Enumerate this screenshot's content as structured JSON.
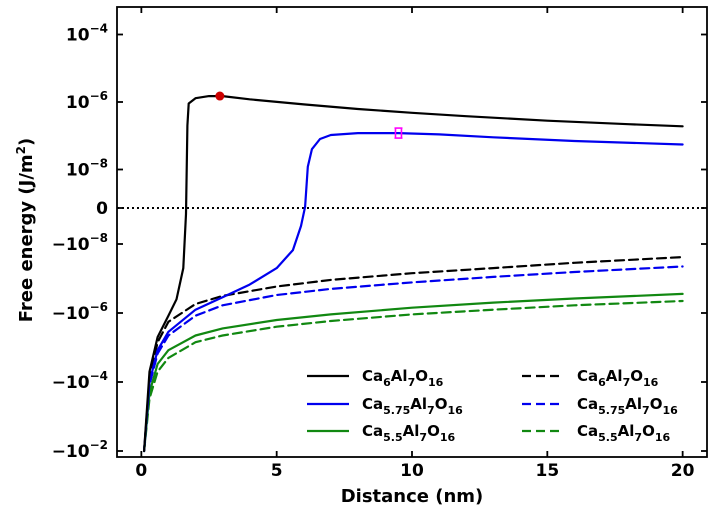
{
  "chart_data": {
    "type": "line",
    "xlabel": "Distance (nm)",
    "ylabel": "Free energy (J/m²)",
    "ylabel_base": "Free energy (J/m",
    "ylabel_sup": "2",
    "ylabel_close": ")",
    "xlim": [
      -0.9,
      20.9
    ],
    "x_ticks": [
      0,
      5,
      10,
      15,
      20
    ],
    "y_scale": "symlog",
    "y_ticks": [
      {
        "base": "10",
        "exp": "−4",
        "value": 0.0001
      },
      {
        "base": "10",
        "exp": "−6",
        "value": 1e-06
      },
      {
        "base": "10",
        "exp": "−8",
        "value": 1e-08
      },
      {
        "base": "0",
        "exp": "",
        "value": 0
      },
      {
        "base": "−10",
        "exp": "−8",
        "value": -1e-08
      },
      {
        "base": "−10",
        "exp": "−6",
        "value": -1e-06
      },
      {
        "base": "−10",
        "exp": "−4",
        "value": -0.0001
      },
      {
        "base": "−10",
        "exp": "−2",
        "value": -0.01
      }
    ],
    "zero_line": "dotted",
    "legend_position": "lower-right",
    "series": [
      {
        "name_base": "Ca",
        "name_sub1": "6",
        "name_mid": "Al",
        "name_sub2": "7",
        "name_end": "O",
        "name_sub3": "16",
        "color": "#000000",
        "style": "solid",
        "x": [
          0.1,
          0.3,
          0.6,
          1.0,
          1.3,
          1.55,
          1.65,
          1.7,
          1.75,
          2.0,
          2.5,
          3.0,
          4.0,
          6.0,
          8.0,
          10.0,
          12.0,
          15.0,
          18.0,
          20.0
        ],
        "y": [
          -0.01,
          -5e-05,
          -5e-06,
          -1.2e-06,
          -4e-07,
          -5e-08,
          -2e-10,
          2e-07,
          9e-07,
          1.3e-06,
          1.5e-06,
          1.5e-06,
          1.2e-06,
          8.5e-07,
          6.2e-07,
          4.8e-07,
          3.8e-07,
          2.8e-07,
          2.2e-07,
          1.9e-07
        ]
      },
      {
        "name_base": "Ca",
        "name_sub1": "5.75",
        "name_mid": "Al",
        "name_sub2": "7",
        "name_end": "O",
        "name_sub3": "16",
        "color": "#0000ee",
        "style": "solid",
        "x": [
          0.1,
          0.3,
          0.6,
          1.0,
          2.0,
          3.0,
          4.0,
          5.0,
          5.6,
          5.9,
          6.05,
          6.15,
          6.3,
          6.6,
          7.0,
          8.0,
          9.5,
          11.0,
          13.0,
          16.0,
          20.0
        ],
        "y": [
          -0.01,
          -0.0001,
          -1.2e-05,
          -3.5e-06,
          -8e-07,
          -3.5e-07,
          -1.5e-07,
          -5e-08,
          -1.5e-08,
          -3e-09,
          5e-11,
          1.2e-08,
          4e-08,
          8e-08,
          1.05e-07,
          1.2e-07,
          1.2e-07,
          1.1e-07,
          9e-08,
          7e-08,
          5.5e-08
        ]
      },
      {
        "name_base": "Ca",
        "name_sub1": "5.5",
        "name_mid": "Al",
        "name_sub2": "7",
        "name_end": "O",
        "name_sub3": "16",
        "color": "#118811",
        "style": "solid",
        "x": [
          0.1,
          0.3,
          0.6,
          1.0,
          2.0,
          3.0,
          5.0,
          7.0,
          10.0,
          13.0,
          16.0,
          20.0
        ],
        "y": [
          -0.01,
          -0.0002,
          -3e-05,
          -1.2e-05,
          -4.5e-06,
          -2.8e-06,
          -1.6e-06,
          -1.1e-06,
          -7e-07,
          -5e-07,
          -3.8e-07,
          -2.8e-07
        ]
      },
      {
        "name_base": "Ca",
        "name_sub1": "6",
        "name_mid": "Al",
        "name_sub2": "7",
        "name_end": "O",
        "name_sub3": "16",
        "color": "#000000",
        "style": "dashed",
        "x": [
          0.1,
          0.3,
          0.6,
          1.0,
          2.0,
          3.0,
          5.0,
          7.0,
          10.0,
          13.0,
          16.0,
          20.0
        ],
        "y": [
          -0.01,
          -8e-05,
          -7e-06,
          -1.8e-06,
          -5.5e-07,
          -3.2e-07,
          -1.7e-07,
          -1.1e-07,
          -7e-08,
          -5e-08,
          -3.5e-08,
          -2.4e-08
        ]
      },
      {
        "name_base": "Ca",
        "name_sub1": "5.75",
        "name_mid": "Al",
        "name_sub2": "7",
        "name_end": "O",
        "name_sub3": "16",
        "color": "#0000ee",
        "style": "dashed",
        "x": [
          0.1,
          0.3,
          0.6,
          1.0,
          2.0,
          3.0,
          5.0,
          7.0,
          10.0,
          13.0,
          16.0,
          20.0
        ],
        "y": [
          -0.01,
          -0.00012,
          -1.5e-05,
          -4.5e-06,
          -1.2e-06,
          -6e-07,
          -3e-07,
          -2e-07,
          -1.3e-07,
          -9e-08,
          -6.5e-08,
          -4.5e-08
        ]
      },
      {
        "name_base": "Ca",
        "name_sub1": "5.5",
        "name_mid": "Al",
        "name_sub2": "7",
        "name_end": "O",
        "name_sub3": "16",
        "color": "#118811",
        "style": "dashed",
        "x": [
          0.1,
          0.3,
          0.6,
          1.0,
          2.0,
          3.0,
          5.0,
          7.0,
          10.0,
          13.0,
          16.0,
          20.0
        ],
        "y": [
          -0.01,
          -0.0003,
          -5e-05,
          -2e-05,
          -7e-06,
          -4.5e-06,
          -2.5e-06,
          -1.7e-06,
          -1.1e-06,
          -8e-07,
          -6e-07,
          -4.5e-07
        ]
      }
    ],
    "markers": [
      {
        "series_index": 0,
        "x": 2.9,
        "y": 1.5e-06,
        "shape": "circle",
        "color": "#cc0000"
      },
      {
        "series_index": 1,
        "x": 9.5,
        "y": 1.2e-07,
        "shape": "error-bar",
        "color": "#ff00ff"
      }
    ]
  }
}
